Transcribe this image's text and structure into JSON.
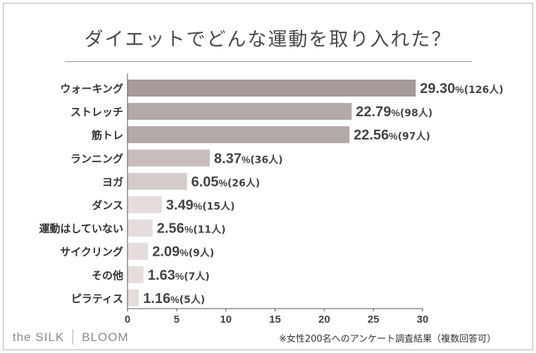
{
  "title": "ダイエットでどんな運動を取り入れた？",
  "brand": {
    "left": "the SILK",
    "right": "BLOOM"
  },
  "footnote": "※女性200名へのアンケート調査結果（複数回答可）",
  "colors": {
    "bar_dark": "#a69b99",
    "bar_mid": "#c8bfbd",
    "bar_light": "#e4dddc",
    "text": "#333333"
  },
  "chart_data": {
    "type": "bar",
    "orientation": "horizontal",
    "categories": [
      "ウォーキング",
      "ストレッチ",
      "筋トレ",
      "ランニング",
      "ヨガ",
      "ダンス",
      "運動はしていない",
      "サイクリング",
      "その他",
      "ピラティス"
    ],
    "values": [
      29.3,
      22.79,
      22.56,
      8.37,
      6.05,
      3.49,
      2.56,
      2.09,
      1.63,
      1.16
    ],
    "value_labels": [
      "29.30",
      "22.79",
      "22.56",
      "8.37",
      "6.05",
      "3.49",
      "2.56",
      "2.09",
      "1.63",
      "1.16"
    ],
    "value_unit": "%",
    "counts": [
      "(126人)",
      "(98人)",
      "(97人)",
      "(36人)",
      "(26人)",
      "(15人)",
      "(11人)",
      "(9人)",
      "(7人)",
      "(5人)"
    ],
    "xlim": [
      0,
      30
    ],
    "xticks": [
      "0",
      "5",
      "10",
      "15",
      "20",
      "25",
      "30"
    ],
    "grid": false,
    "legend": "none"
  }
}
